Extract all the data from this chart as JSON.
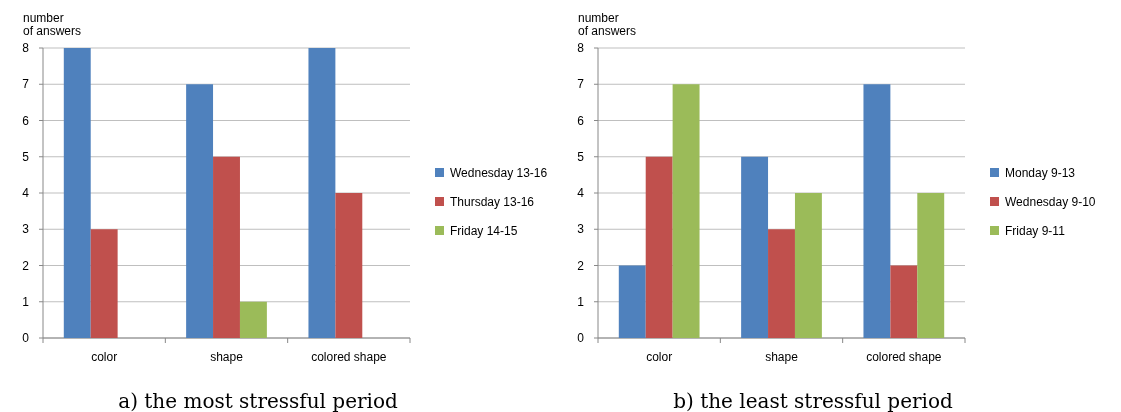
{
  "chart_data": [
    {
      "type": "bar",
      "title": "a) the most stressful period",
      "ylabel": "number\nof answers",
      "categories": [
        "color",
        "shape",
        "colored shape"
      ],
      "series": [
        {
          "name": "Wednesday 13-16",
          "color": "#4f81bd",
          "values": [
            8,
            7,
            8
          ]
        },
        {
          "name": "Thursday 13-16",
          "color": "#c0504d",
          "values": [
            3,
            5,
            4
          ]
        },
        {
          "name": "Friday 14-15",
          "color": "#9bbb59",
          "values": [
            0,
            1,
            0
          ]
        }
      ],
      "ylim": [
        0,
        8
      ],
      "yticks": [
        0,
        1,
        2,
        3,
        4,
        5,
        6,
        7,
        8
      ],
      "grid": "y",
      "legend": "right"
    },
    {
      "type": "bar",
      "title": "b) the least stressful period",
      "ylabel": "number\nof answers",
      "categories": [
        "color",
        "shape",
        "colored shape"
      ],
      "series": [
        {
          "name": "Monday 9-13",
          "color": "#4f81bd",
          "values": [
            2,
            5,
            7
          ]
        },
        {
          "name": "Wednesday 9-10",
          "color": "#c0504d",
          "values": [
            5,
            3,
            2
          ]
        },
        {
          "name": "Friday 9-11",
          "color": "#9bbb59",
          "values": [
            7,
            4,
            4
          ]
        }
      ],
      "ylim": [
        0,
        8
      ],
      "yticks": [
        0,
        1,
        2,
        3,
        4,
        5,
        6,
        7,
        8
      ],
      "grid": "y",
      "legend": "right"
    }
  ]
}
